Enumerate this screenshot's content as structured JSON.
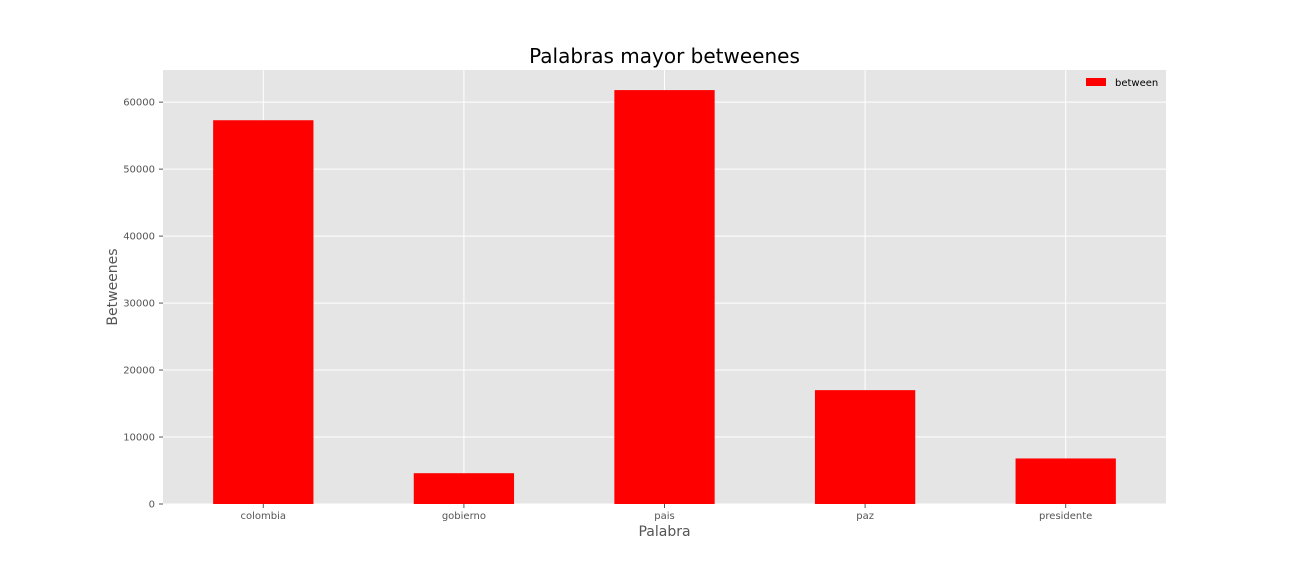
{
  "chart_data": {
    "type": "bar",
    "title": "Palabras mayor betweenes",
    "xlabel": "Palabra",
    "ylabel": "Betweenes",
    "categories": [
      "colombia",
      "gobierno",
      "pais",
      "paz",
      "presidente"
    ],
    "series": [
      {
        "name": "between",
        "color": "#ff0000",
        "values": [
          57300,
          4600,
          61800,
          17000,
          6800
        ]
      }
    ],
    "ylim": [
      0,
      64800
    ],
    "yticks": [
      0,
      10000,
      20000,
      30000,
      40000,
      50000,
      60000
    ],
    "grid": true,
    "legend_position": "top-right",
    "background_color": "#e5e5e5",
    "grid_color": "#ffffff"
  }
}
